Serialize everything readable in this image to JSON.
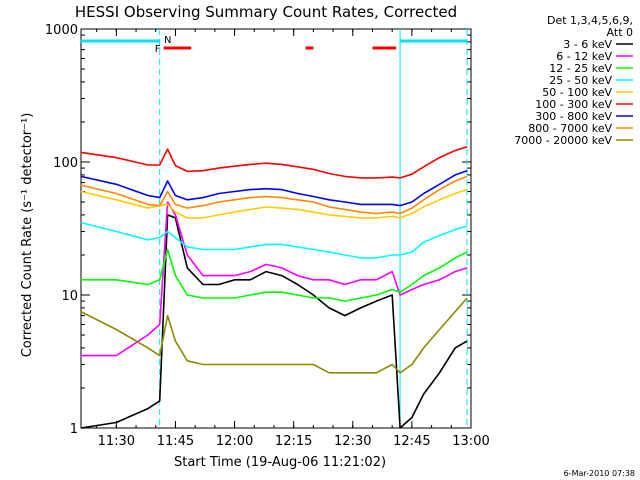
{
  "chart_data": {
    "type": "line",
    "title": "HESSI Observing Summary Count Rates, Corrected",
    "xlabel": "Start Time (19-Aug-06 11:21:02)",
    "ylabel": "Corrected Count Rate (s⁻¹ detector⁻¹)",
    "y_scale": "log",
    "ylim": [
      1,
      1000
    ],
    "xlim": [
      "11:21:02",
      "13:00:00"
    ],
    "grid": false,
    "x_ticks": [
      "11:30",
      "11:45",
      "12:00",
      "12:15",
      "12:30",
      "12:45",
      "13:00"
    ],
    "y_ticks": [
      "1",
      "10",
      "100",
      "1000"
    ],
    "legend": {
      "position": "right",
      "header": [
        "Det 1,3,4,5,6,9,",
        "Att 0"
      ]
    },
    "footer_timestamp": "6-Mar-2010 07:38",
    "flags": [
      {
        "label": "N",
        "color": "#00e5ee",
        "start": "11:21",
        "end": "11:41",
        "row": "top"
      },
      {
        "label": "",
        "color": "#00e5ee",
        "start": "12:42",
        "end": "12:59",
        "row": "top"
      },
      {
        "label": "F",
        "color": "#ff0000",
        "start": "11:42",
        "end": "11:49",
        "row": "bottom"
      },
      {
        "label": "",
        "color": "#ff0000",
        "start": "12:18",
        "end": "12:20",
        "row": "bottom"
      },
      {
        "label": "",
        "color": "#ff0000",
        "start": "12:35",
        "end": "12:41",
        "row": "bottom"
      }
    ],
    "vlines": [
      {
        "time": "11:41",
        "color": "#00e5ee",
        "style": "dashed"
      },
      {
        "time": "12:42",
        "color": "#00e5ee",
        "style": "solid"
      },
      {
        "time": "12:59",
        "color": "#00e5ee",
        "style": "dashed"
      }
    ],
    "x_times": [
      "11:21",
      "11:30",
      "11:38",
      "11:41",
      "11:43",
      "11:45",
      "11:48",
      "11:52",
      "11:56",
      "12:00",
      "12:04",
      "12:08",
      "12:12",
      "12:16",
      "12:20",
      "12:24",
      "12:28",
      "12:32",
      "12:36",
      "12:40",
      "12:42",
      "12:45",
      "12:48",
      "12:52",
      "12:56",
      "12:59"
    ],
    "series": [
      {
        "name": "3 - 6 keV",
        "color": "#000000",
        "values": [
          1.0,
          1.1,
          1.4,
          1.6,
          40,
          38,
          16,
          12,
          12,
          13,
          13,
          15,
          14,
          12,
          10,
          8,
          7,
          8,
          9,
          10,
          1.0,
          1.2,
          1.8,
          2.6,
          4.0,
          4.5
        ]
      },
      {
        "name": "6 - 12 keV",
        "color": "#ff00ff",
        "values": [
          3.5,
          3.5,
          5,
          6,
          50,
          40,
          20,
          14,
          14,
          14,
          15,
          17,
          16,
          14,
          13,
          13,
          12,
          13,
          13,
          15,
          10,
          11,
          12,
          13,
          15,
          16
        ]
      },
      {
        "name": "12 - 25 keV",
        "color": "#00ff00",
        "values": [
          13,
          13,
          12,
          13,
          22,
          14,
          10,
          9.5,
          9.5,
          9.5,
          10,
          10.5,
          10.5,
          10,
          9.5,
          9.5,
          9,
          9.5,
          10,
          11,
          10.5,
          12,
          14,
          16,
          19,
          21
        ]
      },
      {
        "name": "25 - 50 keV",
        "color": "#00ffff",
        "values": [
          35,
          30,
          26,
          27,
          30,
          27,
          23,
          22,
          22,
          22,
          23,
          24,
          24,
          23,
          22,
          21,
          20,
          19,
          19,
          20,
          20,
          21,
          25,
          28,
          31,
          33
        ]
      },
      {
        "name": "50 - 100 keV",
        "color": "#ffcc00",
        "values": [
          60,
          52,
          45,
          47,
          48,
          42,
          38,
          38,
          40,
          42,
          44,
          46,
          45,
          44,
          42,
          40,
          39,
          38,
          38,
          39,
          38,
          41,
          46,
          52,
          58,
          62
        ]
      },
      {
        "name": "100 - 300 keV",
        "color": "#ff0000",
        "values": [
          118,
          108,
          95,
          95,
          125,
          94,
          85,
          86,
          90,
          93,
          96,
          98,
          96,
          92,
          88,
          82,
          78,
          76,
          76,
          77,
          76,
          81,
          92,
          108,
          122,
          130
        ]
      },
      {
        "name": "300 - 800 keV",
        "color": "#0000ff",
        "values": [
          78,
          68,
          56,
          54,
          72,
          56,
          52,
          54,
          58,
          60,
          62,
          63,
          62,
          58,
          55,
          52,
          50,
          48,
          48,
          48,
          47,
          50,
          58,
          68,
          80,
          86
        ]
      },
      {
        "name": "800 - 7000 keV",
        "color": "#ff8800",
        "values": [
          67,
          58,
          48,
          47,
          60,
          48,
          45,
          47,
          50,
          52,
          54,
          55,
          54,
          52,
          50,
          46,
          44,
          42,
          41,
          42,
          41,
          45,
          52,
          62,
          72,
          78
        ]
      },
      {
        "name": "7000 - 20000 keV",
        "color": "#8b8b00",
        "values": [
          7.5,
          5.5,
          4.0,
          3.5,
          7.0,
          4.5,
          3.2,
          3.0,
          3.0,
          3.0,
          3.0,
          3.0,
          3.0,
          3.0,
          3.0,
          2.6,
          2.6,
          2.6,
          2.6,
          3.0,
          2.6,
          3.0,
          4.0,
          5.5,
          7.5,
          9.5
        ]
      }
    ]
  }
}
